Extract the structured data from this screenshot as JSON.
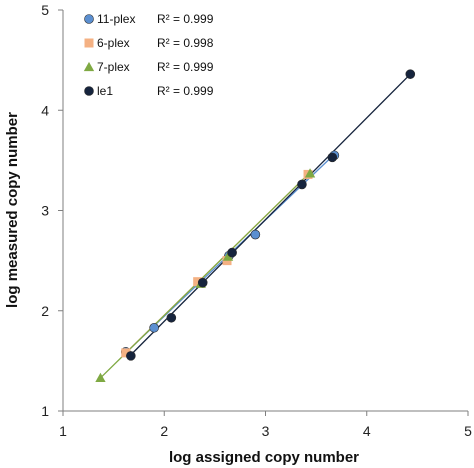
{
  "chart_data": {
    "type": "scatter",
    "title": "",
    "xlabel": "log assigned copy number",
    "ylabel": "log measured copy number",
    "xlim": [
      1,
      5
    ],
    "ylim": [
      1,
      5
    ],
    "xticks": [
      "1",
      "2",
      "3",
      "4",
      "5"
    ],
    "yticks": [
      "1",
      "2",
      "3",
      "4",
      "5"
    ],
    "grid": false,
    "legend_position": "top-left",
    "series": [
      {
        "name": "11-plex",
        "r2": "R² = 0.999",
        "color": "#5B8FD0",
        "marker": "circle",
        "x": [
          1.62,
          1.9,
          2.35,
          2.64,
          2.9,
          3.68
        ],
        "y": [
          1.59,
          1.83,
          2.28,
          2.55,
          2.76,
          3.55
        ],
        "fit": [
          [
            1.62,
            1.58
          ],
          [
            3.68,
            3.56
          ]
        ]
      },
      {
        "name": "6-plex",
        "r2": "R² = 0.998",
        "color": "#F4B183",
        "marker": "square",
        "x": [
          1.62,
          2.33,
          2.62,
          3.42
        ],
        "y": [
          1.58,
          2.29,
          2.5,
          3.36
        ],
        "fit": [
          [
            1.62,
            1.58
          ],
          [
            3.42,
            3.36
          ]
        ]
      },
      {
        "name": "7-plex",
        "r2": "R² = 0.999",
        "color": "#7FA943",
        "marker": "triangle",
        "x": [
          1.37,
          2.36,
          2.63,
          3.44
        ],
        "y": [
          1.33,
          2.27,
          2.54,
          3.37
        ],
        "fit": [
          [
            1.37,
            1.33
          ],
          [
            3.44,
            3.38
          ]
        ]
      },
      {
        "name": "le1",
        "r2": "R² = 0.999",
        "color": "#16243D",
        "marker": "circle",
        "x": [
          1.67,
          2.07,
          2.38,
          2.67,
          3.36,
          3.66,
          4.43
        ],
        "y": [
          1.55,
          1.93,
          2.28,
          2.58,
          3.26,
          3.53,
          4.36
        ],
        "fit": [
          [
            1.67,
            1.56
          ],
          [
            4.43,
            4.36
          ]
        ]
      }
    ]
  }
}
